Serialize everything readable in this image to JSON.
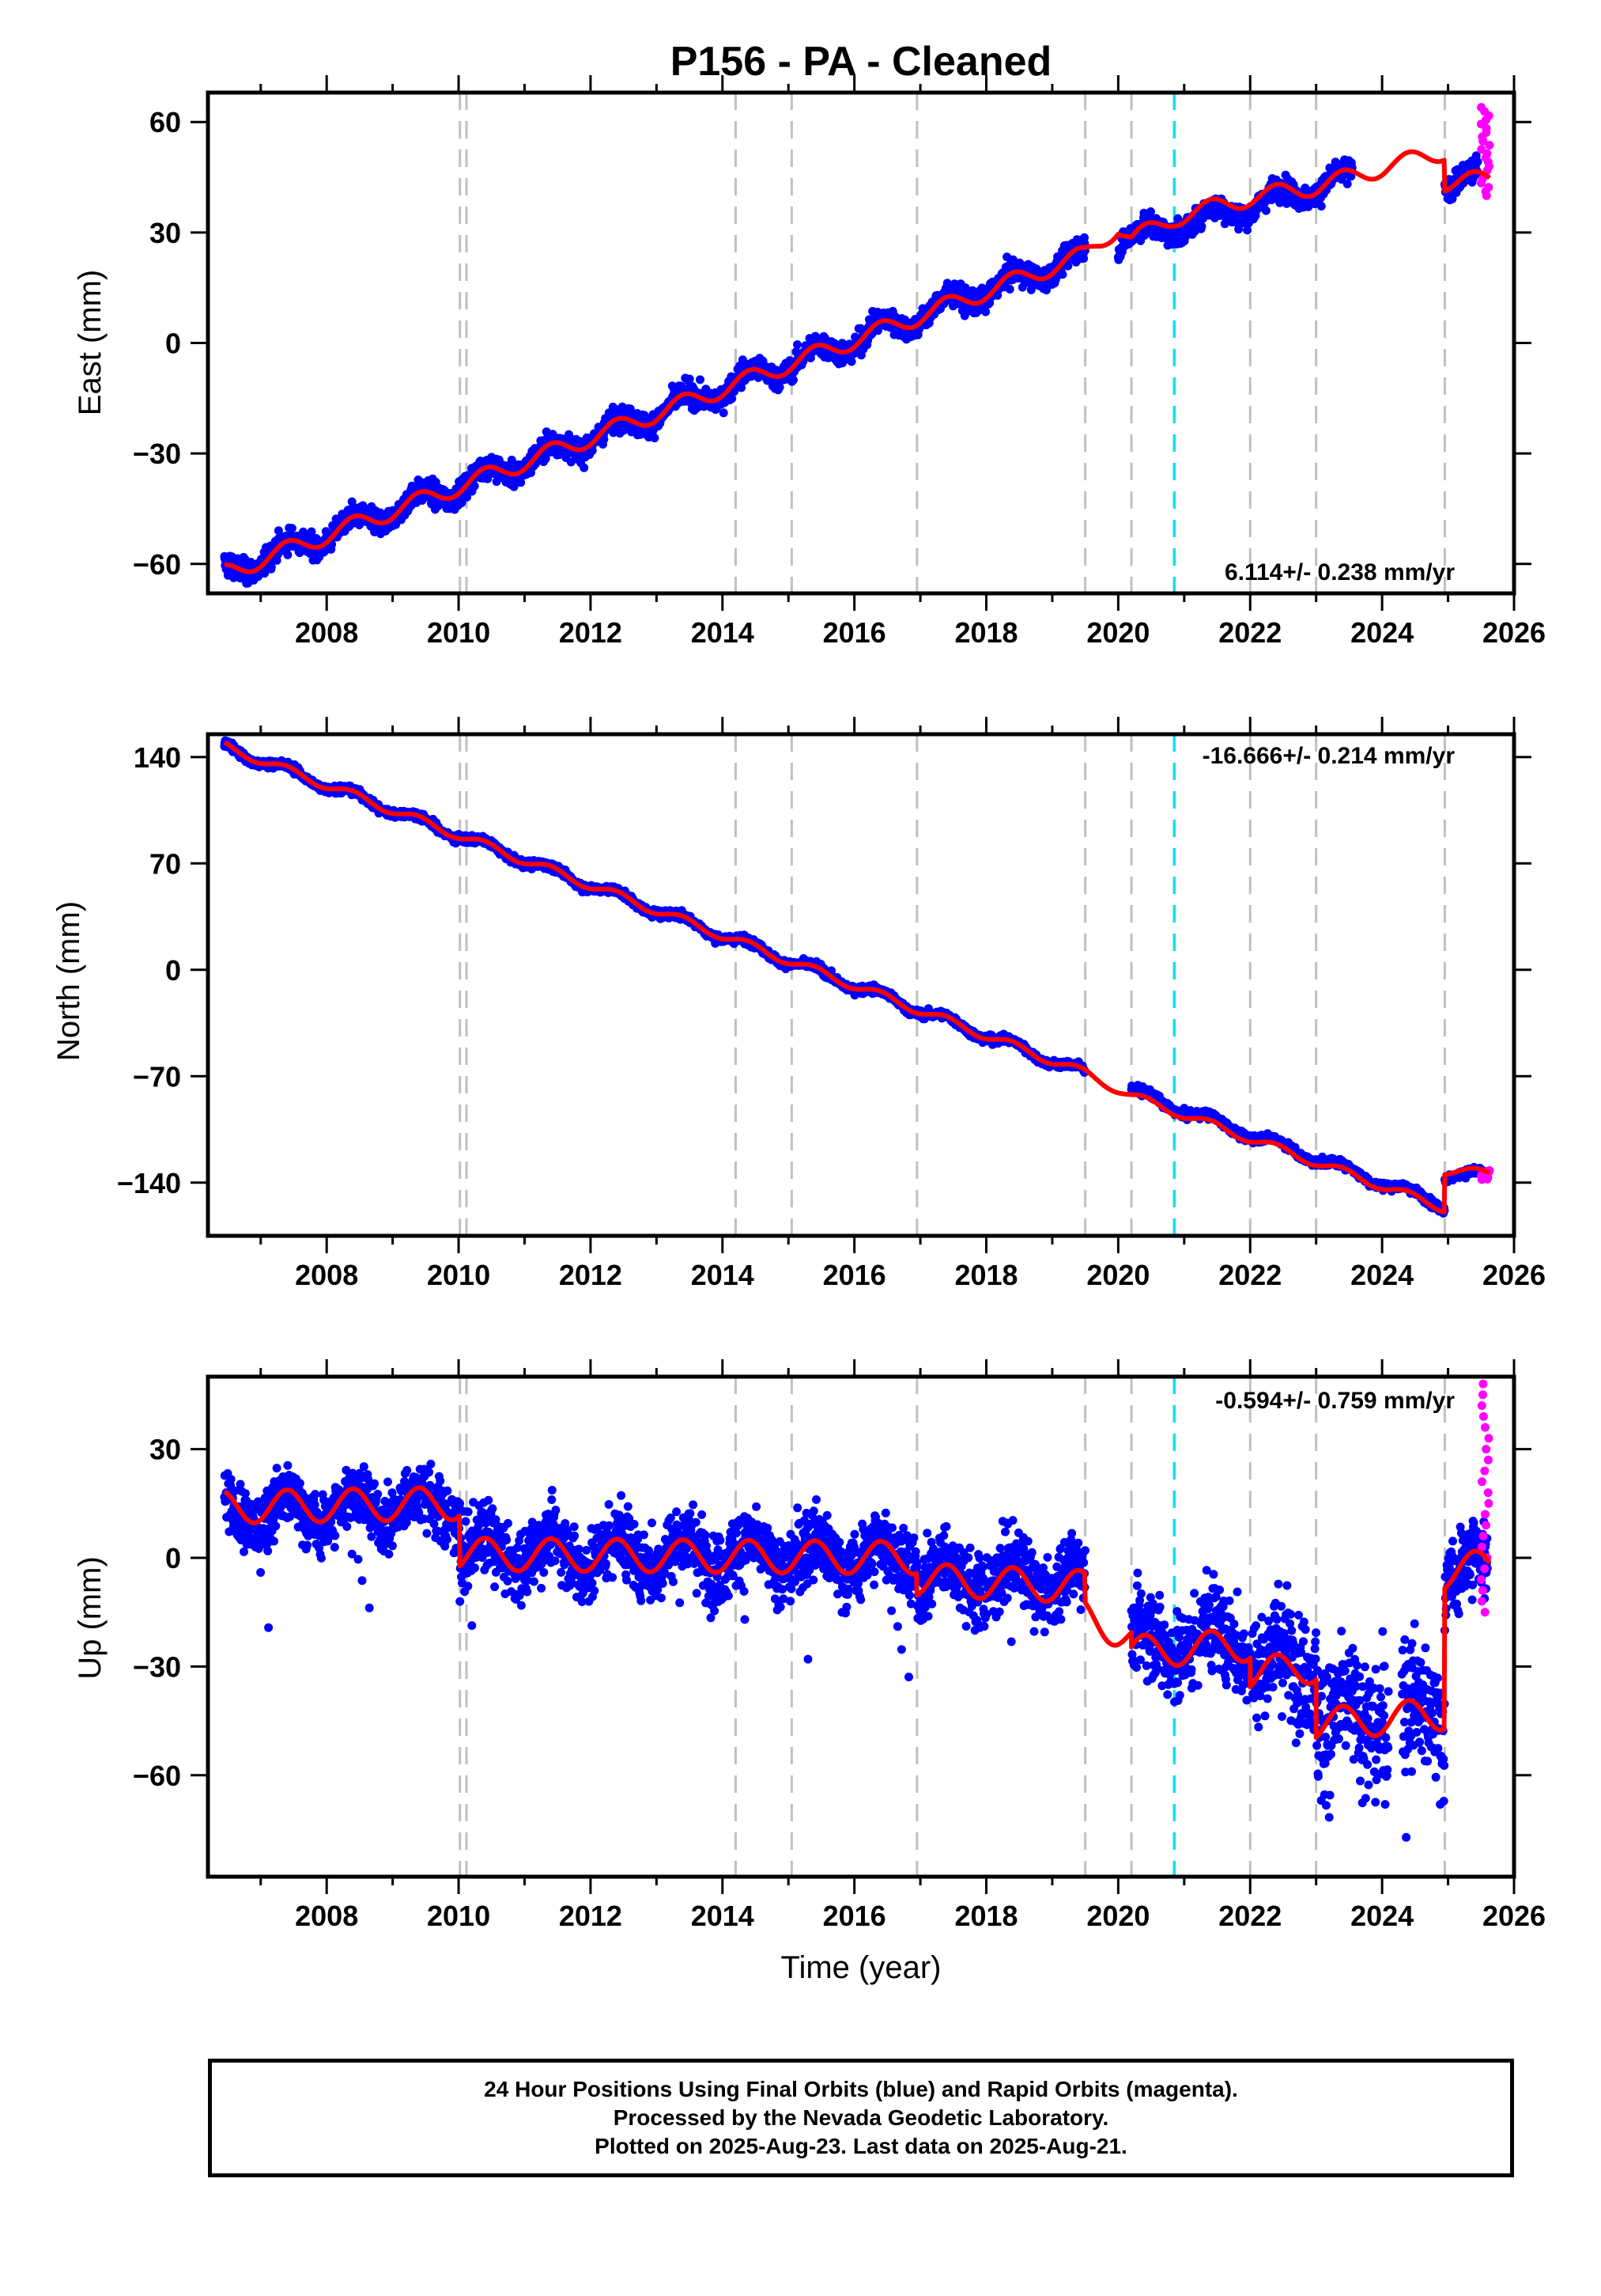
{
  "title": "P156  - PA - Cleaned",
  "xlabel": "Time (year)",
  "footer": {
    "line1": "24 Hour Positions Using Final Orbits (blue) and Rapid Orbits (magenta).",
    "line2": "Processed by the Nevada Geodetic Laboratory.",
    "line3": "Plotted on 2025-Aug-23. Last data on 2025-Aug-21."
  },
  "colors": {
    "final_orbits": "#0000ff",
    "rapid_orbits": "#ff00ff",
    "model": "#ff0000",
    "event_lines": "#c0c0c0",
    "highlight_line": "#00e5ee"
  },
  "chart_data": [
    {
      "type": "scatter",
      "panel": "east",
      "ylabel": "East (mm)",
      "rate_label": "6.114+/- 0.238 mm/yr",
      "xlim": [
        2006.2,
        2026.0
      ],
      "ylim": [
        -68,
        68
      ],
      "xticks": [
        2008,
        2010,
        2012,
        2014,
        2016,
        2018,
        2020,
        2022,
        2024,
        2026
      ],
      "xtick_labels": [
        "2008",
        "2010",
        "2012",
        "2014",
        "2016",
        "2018",
        "2020",
        "2022",
        "2024",
        "2026"
      ],
      "yticks": [
        -60,
        -30,
        0,
        30,
        60
      ],
      "ytick_labels": [
        "−60",
        "−30",
        "0",
        "30",
        "60"
      ],
      "event_lines": [
        2010.02,
        2010.12,
        2014.2,
        2015.05,
        2016.95,
        2019.5,
        2020.2,
        2022.0,
        2023.0,
        2024.95
      ],
      "highlight_line": 2020.85,
      "series": [
        {
          "label": "Final orbits",
          "trend": [
            [
              2006.45,
              -62.5
            ],
            [
              2019.5,
              24.0
            ]
          ],
          "seasonal_amp": 2.6,
          "noise": 2.2,
          "rate": 6.114,
          "extra_segments": [
            {
              "from": 2020.0,
              "to": 2023.55,
              "start": 27.5,
              "end": 45.0
            },
            {
              "from": 2024.95,
              "to": 2025.45,
              "start": 44.0,
              "end": 44.0
            }
          ],
          "gaps": [
            [
              2019.5,
              2020.0
            ],
            [
              2023.55,
              2024.25
            ]
          ]
        },
        {
          "label": "Rapid orbits",
          "x_range": [
            2025.5,
            2025.63
          ],
          "y_range": [
            40,
            64
          ]
        }
      ],
      "model": {
        "knots": [
          [
            2006.45,
            -62.5
          ],
          [
            2019.5,
            24.0
          ],
          [
            2019.5,
            24.0
          ],
          [
            2020.0,
            31.5
          ],
          [
            2020.2,
            28.0
          ],
          [
            2020.85,
            34.0
          ],
          [
            2022.0,
            39.5
          ],
          [
            2023.0,
            42.5
          ],
          [
            2024.1,
            48.0
          ],
          [
            2024.95,
            52.0
          ],
          [
            2024.95,
            43.5
          ],
          [
            2025.63,
            44.5
          ]
        ],
        "seasonal_amp": 2.4
      }
    },
    {
      "type": "scatter",
      "panel": "north",
      "ylabel": "North (mm)",
      "rate_label": "-16.666+/- 0.214 mm/yr",
      "xlim": [
        2006.2,
        2026.0
      ],
      "ylim": [
        -175,
        155
      ],
      "xticks": [
        2008,
        2010,
        2012,
        2014,
        2016,
        2018,
        2020,
        2022,
        2024,
        2026
      ],
      "xtick_labels": [
        "2008",
        "2010",
        "2012",
        "2014",
        "2016",
        "2018",
        "2020",
        "2022",
        "2024",
        "2026"
      ],
      "yticks": [
        -140,
        -70,
        0,
        70,
        140
      ],
      "ytick_labels": [
        "−140",
        "−70",
        "0",
        "70",
        "140"
      ],
      "event_lines": [
        2010.02,
        2010.12,
        2014.2,
        2015.05,
        2016.95,
        2019.5,
        2020.2,
        2022.0,
        2023.0,
        2024.95
      ],
      "highlight_line": 2020.85,
      "series": [
        {
          "label": "Final orbits",
          "trend": [
            [
              2006.45,
              147.0
            ],
            [
              2019.5,
              -68.0
            ]
          ],
          "seasonal_amp": 3.0,
          "noise": 1.8,
          "rate": -16.666,
          "extra_segments": [
            {
              "from": 2020.2,
              "to": 2024.95,
              "start": -80.0,
              "end": -155.0
            },
            {
              "from": 2024.95,
              "to": 2025.6,
              "start": -135.0,
              "end": -136.0
            }
          ],
          "gaps": [
            [
              2019.5,
              2020.2
            ]
          ]
        },
        {
          "label": "Rapid orbits",
          "x_range": [
            2025.5,
            2025.63
          ],
          "y_range": [
            -138,
            -132
          ]
        }
      ],
      "model": {
        "knots": [
          [
            2006.45,
            147.0
          ],
          [
            2019.5,
            -68.0
          ],
          [
            2020.2,
            -83.0
          ],
          [
            2024.95,
            -157.0
          ],
          [
            2024.95,
            -132.0
          ],
          [
            2025.63,
            -134.0
          ]
        ],
        "seasonal_amp": 2.8
      }
    },
    {
      "type": "scatter",
      "panel": "up",
      "ylabel": "Up (mm)",
      "rate_label": "-0.594+/- 0.759 mm/yr",
      "xlim": [
        2006.2,
        2026.0
      ],
      "ylim": [
        -88,
        50
      ],
      "xticks": [
        2008,
        2010,
        2012,
        2014,
        2016,
        2018,
        2020,
        2022,
        2024,
        2026
      ],
      "xtick_labels": [
        "2008",
        "2010",
        "2012",
        "2014",
        "2016",
        "2018",
        "2020",
        "2022",
        "2024",
        "2026"
      ],
      "yticks": [
        -60,
        -30,
        0,
        30
      ],
      "ytick_labels": [
        "−60",
        "−30",
        "0",
        "30"
      ],
      "event_lines": [
        2010.02,
        2010.12,
        2014.2,
        2015.05,
        2016.95,
        2019.5,
        2020.2,
        2022.0,
        2023.0,
        2024.95
      ],
      "highlight_line": 2020.85,
      "series": [
        {
          "label": "Final orbits",
          "pieces": [
            {
              "from": 2006.45,
              "to": 2010.02,
              "start": 12.0,
              "end": 15.0,
              "noise": 6.0
            },
            {
              "from": 2010.02,
              "to": 2016.95,
              "start": 2.0,
              "end": 0.0,
              "noise": 7.0
            },
            {
              "from": 2016.95,
              "to": 2019.5,
              "start": -5.0,
              "end": -6.0,
              "noise": 7.0
            },
            {
              "from": 2020.2,
              "to": 2022.0,
              "start": -24.0,
              "end": -22.0,
              "noise": 9.0
            },
            {
              "from": 2022.0,
              "to": 2023.0,
              "start": -30.0,
              "end": -28.0,
              "noise": 11.0
            },
            {
              "from": 2023.0,
              "to": 2024.1,
              "start": -45.0,
              "end": -44.0,
              "noise": 14.0
            },
            {
              "from": 2024.3,
              "to": 2024.95,
              "start": -43.0,
              "end": -42.0,
              "noise": 13.0
            },
            {
              "from": 2024.95,
              "to": 2025.6,
              "start": -5.0,
              "end": -2.0,
              "noise": 8.0
            }
          ],
          "seasonal_amp": 4.5
        },
        {
          "label": "Rapid orbits",
          "x_range": [
            2025.5,
            2025.63
          ],
          "y_range": [
            -15,
            48
          ]
        }
      ],
      "model": {
        "knots": [
          [
            2006.45,
            14.0
          ],
          [
            2010.02,
            15.0
          ],
          [
            2010.02,
            1.0
          ],
          [
            2016.95,
            0.0
          ],
          [
            2016.95,
            -6.0
          ],
          [
            2019.5,
            -8.0
          ],
          [
            2019.5,
            -16.0
          ],
          [
            2020.2,
            -22.0
          ],
          [
            2020.2,
            -26.0
          ],
          [
            2022.0,
            -24.0
          ],
          [
            2022.0,
            -32.0
          ],
          [
            2023.0,
            -30.0
          ],
          [
            2023.0,
            -46.0
          ],
          [
            2024.95,
            -43.0
          ],
          [
            2024.95,
            -4.0
          ],
          [
            2025.63,
            -2.0
          ]
        ],
        "seasonal_amp": 4.5
      }
    }
  ]
}
